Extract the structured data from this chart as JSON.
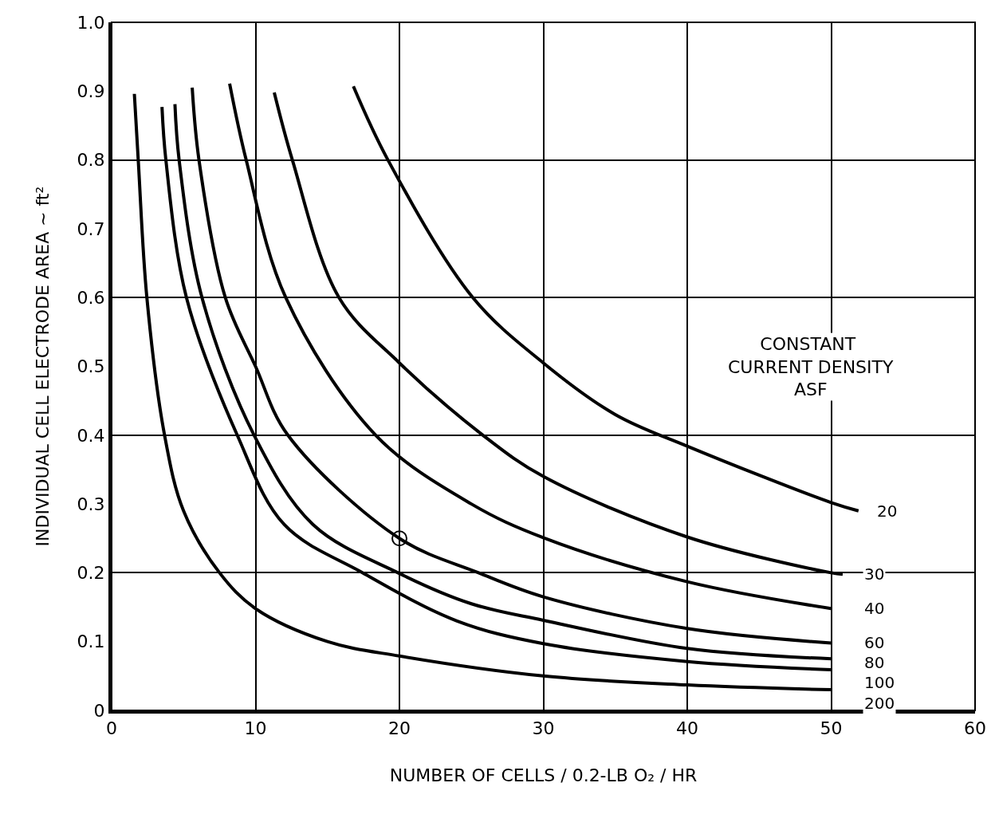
{
  "chart_data": {
    "type": "line",
    "xlabel": "NUMBER OF CELLS / 0.2-LB O₂ / HR",
    "ylabel": "INDIVIDUAL CELL ELECTRODE AREA ~ ft²",
    "legend_title": "CONSTANT CURRENT DENSITY ASF",
    "legend": false,
    "grid": true,
    "marker": "none",
    "line_style": "solid",
    "xlim": [
      0,
      60
    ],
    "xticks": [
      0,
      10,
      20,
      30,
      40,
      50,
      60
    ],
    "ylim": [
      0,
      1.0
    ],
    "yticks": [
      {
        "value": 0,
        "label": "0"
      },
      0.1,
      0.2,
      0.3,
      0.4,
      0.5,
      0.6,
      0.7,
      0.8,
      0.9,
      {
        "value": 1.0,
        "label": "1.0"
      }
    ],
    "series": [
      {
        "name": "20",
        "color": "#000000",
        "x": [
          16.8,
          19.2,
          25.1,
          30,
          35,
          40,
          50,
          51.9
        ],
        "values": [
          0.907,
          0.8,
          0.6,
          0.505,
          0.43,
          0.384,
          0.302,
          0.29
        ]
      },
      {
        "name": "30",
        "color": "#000000",
        "x": [
          11.3,
          12.56,
          15.8,
          20,
          25.8,
          30,
          40,
          50,
          50.8
        ],
        "values": [
          0.898,
          0.8,
          0.6,
          0.505,
          0.4,
          0.34,
          0.252,
          0.2,
          0.198
        ]
      },
      {
        "name": "40",
        "color": "#000000",
        "x": [
          8.2,
          9.35,
          12.1,
          18.35,
          25,
          30,
          40,
          50
        ],
        "values": [
          0.911,
          0.8,
          0.6,
          0.4,
          0.3,
          0.251,
          0.187,
          0.148
        ]
      },
      {
        "name": "60",
        "color": "#000000",
        "x": [
          5.6,
          6.07,
          7.9,
          10,
          12.25,
          20,
          25.5,
          30,
          40,
          50
        ],
        "values": [
          0.905,
          0.8,
          0.6,
          0.5,
          0.4,
          0.25,
          0.2,
          0.165,
          0.119,
          0.098
        ]
      },
      {
        "name": "80",
        "color": "#000000",
        "x": [
          4.4,
          4.69,
          6.28,
          9.9,
          14,
          19.9,
          25,
          30,
          40,
          50
        ],
        "values": [
          0.881,
          0.8,
          0.6,
          0.4,
          0.27,
          0.2,
          0.155,
          0.131,
          0.09,
          0.075
        ]
      },
      {
        "name": "100",
        "color": "#000000",
        "x": [
          3.5,
          3.77,
          5.2,
          8.73,
          12,
          17.45,
          24,
          30,
          40,
          50
        ],
        "values": [
          0.877,
          0.8,
          0.6,
          0.4,
          0.27,
          0.2,
          0.13,
          0.097,
          0.071,
          0.059
        ]
      },
      {
        "name": "200",
        "color": "#000000",
        "x": [
          1.58,
          1.85,
          2.45,
          3.68,
          5,
          7.5,
          10,
          15,
          20,
          30,
          40,
          50
        ],
        "values": [
          0.896,
          0.8,
          0.6,
          0.4,
          0.29,
          0.2,
          0.148,
          0.1,
          0.079,
          0.05,
          0.037,
          0.03
        ]
      },
      {
        "type": "scatter",
        "marker": "circle",
        "color": "#000000",
        "x": [
          20
        ],
        "values": [
          0.25
        ]
      }
    ]
  }
}
